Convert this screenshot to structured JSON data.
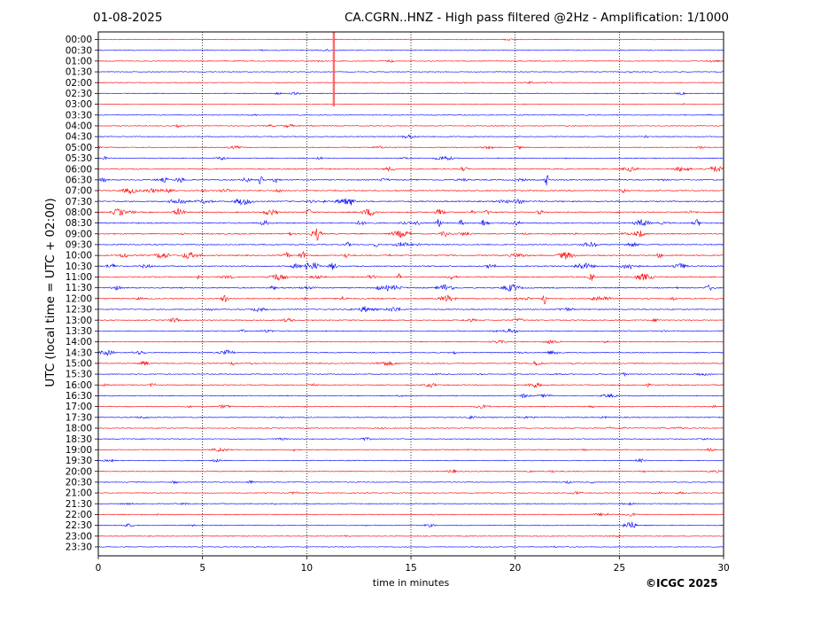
{
  "header": {
    "date": "01-08-2025",
    "title": "CA.CGRN..HNZ - High pass filtered @2Hz - Amplification: 1/1000"
  },
  "footer": {
    "copyright": "©ICGC 2025"
  },
  "colors": {
    "red": "#ff0000",
    "blue": "#0000ff",
    "grid": "#000000"
  },
  "chart_data": {
    "type": "line",
    "title": "CA.CGRN..HNZ - High pass filtered @2Hz - Amplification: 1/1000",
    "xlabel": "time in minutes",
    "ylabel": "UTC (local time = UTC + 02:00)",
    "xlim": [
      0,
      30
    ],
    "x_ticks": [
      "0",
      "5",
      "10",
      "15",
      "20",
      "25",
      "30"
    ],
    "vertical_gridlines_dotted": [
      5,
      10,
      15,
      20,
      25
    ],
    "trace_colors_alternate": [
      "red",
      "blue"
    ],
    "rows": [
      "00:00",
      "00:30",
      "01:00",
      "01:30",
      "02:00",
      "02:30",
      "03:00",
      "03:30",
      "04:00",
      "04:30",
      "05:00",
      "05:30",
      "06:00",
      "06:30",
      "07:00",
      "07:30",
      "08:00",
      "08:30",
      "09:00",
      "09:30",
      "10:00",
      "10:30",
      "11:00",
      "11:30",
      "12:00",
      "12:30",
      "13:00",
      "13:30",
      "14:00",
      "14:30",
      "15:00",
      "15:30",
      "16:00",
      "16:30",
      "17:00",
      "17:30",
      "18:00",
      "18:30",
      "19:00",
      "19:30",
      "20:00",
      "20:30",
      "21:00",
      "21:30",
      "22:00",
      "22:30",
      "23:00",
      "23:30"
    ],
    "row_activity_level": [
      0.1,
      0.15,
      0.2,
      0.1,
      0.15,
      0.2,
      0.1,
      0.2,
      0.25,
      0.3,
      0.4,
      0.45,
      0.6,
      0.7,
      0.8,
      0.85,
      0.8,
      0.9,
      0.75,
      0.6,
      0.9,
      0.9,
      0.8,
      0.85,
      0.75,
      0.6,
      0.45,
      0.4,
      0.35,
      0.5,
      0.5,
      0.45,
      0.45,
      0.4,
      0.45,
      0.4,
      0.35,
      0.3,
      0.35,
      0.3,
      0.35,
      0.3,
      0.25,
      0.25,
      0.25,
      0.3,
      0.15,
      0.1
    ],
    "events": [
      {
        "row": "00:00",
        "minute": 11.3,
        "type": "large_spike"
      },
      {
        "row": "06:30",
        "minute": 7.8,
        "type": "spike"
      },
      {
        "row": "06:30",
        "minute": 21.5,
        "type": "spike"
      },
      {
        "row": "09:00",
        "minute": 10.5,
        "type": "spike"
      },
      {
        "row": "10:30",
        "minute": 10.0,
        "type": "spike"
      },
      {
        "row": "12:00",
        "minute": 21.4,
        "type": "spike"
      },
      {
        "row": "22:30",
        "minute": 25.5,
        "type": "burst"
      }
    ]
  }
}
